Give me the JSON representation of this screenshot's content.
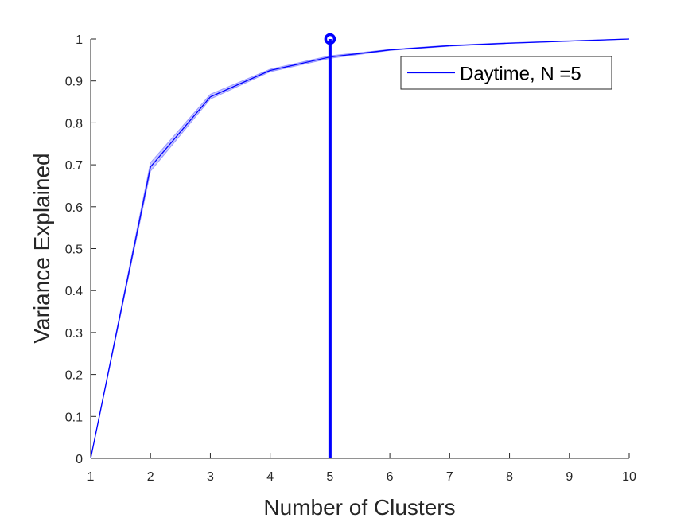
{
  "chart_data": {
    "type": "line",
    "title": "",
    "xlabel": "Number of Clusters",
    "ylabel": "Variance Explained",
    "xlim": [
      1,
      10
    ],
    "ylim": [
      0,
      1
    ],
    "x_ticks": [
      1,
      2,
      3,
      4,
      5,
      6,
      7,
      8,
      9,
      10
    ],
    "y_ticks": [
      0,
      0.1,
      0.2,
      0.3,
      0.4,
      0.5,
      0.6,
      0.7,
      0.8,
      0.9,
      1
    ],
    "x_tick_labels": [
      "1",
      "2",
      "3",
      "4",
      "5",
      "6",
      "7",
      "8",
      "9",
      "10"
    ],
    "y_tick_labels": [
      "0",
      "0.1",
      "0.2",
      "0.3",
      "0.4",
      "0.5",
      "0.6",
      "0.7",
      "0.8",
      "0.9",
      "1"
    ],
    "grid": false,
    "legend_position": "top-right",
    "series": [
      {
        "name": "Daytime, N =5",
        "color": "#0000ff",
        "x": [
          1,
          2,
          3,
          4,
          5,
          6,
          7,
          8,
          9,
          10
        ],
        "values": [
          0,
          0.695,
          0.862,
          0.925,
          0.957,
          0.974,
          0.984,
          0.99,
          0.995,
          1.0
        ],
        "band_lower": [
          0,
          0.685,
          0.857,
          0.922,
          0.954,
          0.973,
          0.983,
          0.99,
          0.995,
          1.0
        ],
        "band_upper": [
          0,
          0.705,
          0.868,
          0.928,
          0.96,
          0.975,
          0.985,
          0.991,
          0.996,
          1.0
        ],
        "band_color": "#9999ff"
      }
    ],
    "marker": {
      "x": 5,
      "y": 1,
      "color": "#0000ff",
      "style": "vertical line with circle marker"
    },
    "axis_color": "#262626",
    "background": "#ffffff"
  }
}
